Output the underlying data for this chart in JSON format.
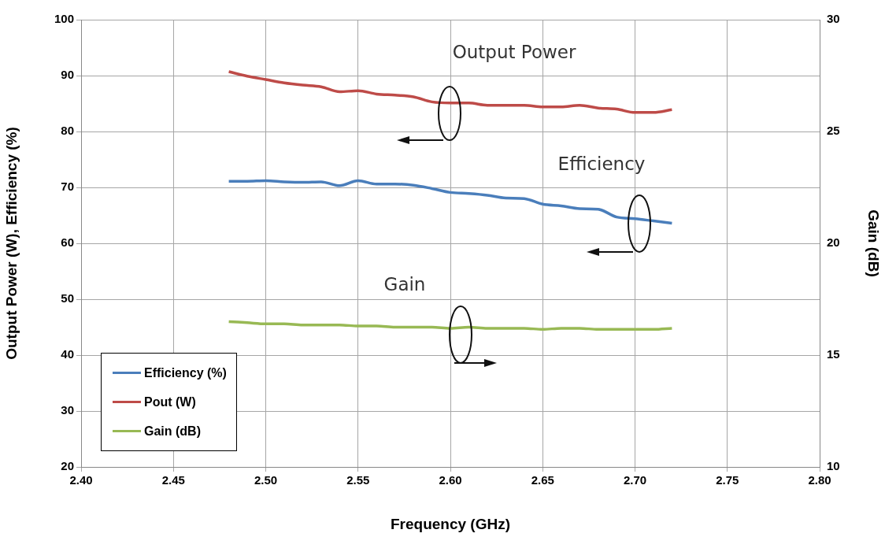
{
  "chart_data": {
    "type": "line",
    "xlabel": "Frequency (GHz)",
    "ylabel": "Output Power (W), Efficiency (%)",
    "y2label": "Gain (dB)",
    "x": [
      2.48,
      2.49,
      2.5,
      2.51,
      2.52,
      2.53,
      2.54,
      2.55,
      2.56,
      2.57,
      2.58,
      2.59,
      2.6,
      2.61,
      2.62,
      2.63,
      2.64,
      2.65,
      2.66,
      2.67,
      2.68,
      2.69,
      2.7,
      2.71,
      2.72
    ],
    "series": [
      {
        "name": "Efficiency (%)",
        "color": "#4a7ebb",
        "values": [
          71.1,
          71.1,
          71.2,
          71.0,
          70.9,
          71.0,
          70.3,
          71.2,
          70.6,
          70.6,
          70.4,
          69.8,
          69.1,
          68.9,
          68.6,
          68.1,
          68.0,
          67.0,
          66.7,
          66.2,
          66.1,
          64.7,
          64.4,
          64.0,
          63.6
        ]
      },
      {
        "name": "Pout (W)",
        "color": "#be4b48",
        "values": [
          90.7,
          89.9,
          89.3,
          88.7,
          88.3,
          88.0,
          87.1,
          87.3,
          86.7,
          86.5,
          86.2,
          85.3,
          85.1,
          85.1,
          84.7,
          84.7,
          84.7,
          84.4,
          84.4,
          84.7,
          84.2,
          84.0,
          83.4,
          83.4,
          83.9
        ]
      },
      {
        "name": "Gain (dB)",
        "color": "#98b954",
        "axis": "y2",
        "values": [
          16.5,
          16.45,
          16.4,
          16.4,
          16.35,
          16.35,
          16.35,
          16.3,
          16.3,
          16.25,
          16.25,
          16.25,
          16.2,
          16.25,
          16.2,
          16.2,
          16.2,
          16.15,
          16.2,
          16.2,
          16.15,
          16.15,
          16.15,
          16.15,
          16.2
        ]
      }
    ],
    "xlim": [
      2.4,
      2.8
    ],
    "xticks": [
      {
        "value": 2.4,
        "label": "2.40"
      },
      {
        "value": 2.45,
        "label": "2.45"
      },
      {
        "value": 2.5,
        "label": "2.50"
      },
      {
        "value": 2.55,
        "label": "2.55"
      },
      {
        "value": 2.6,
        "label": "2.60"
      },
      {
        "value": 2.65,
        "label": "2.65"
      },
      {
        "value": 2.7,
        "label": "2.70"
      },
      {
        "value": 2.75,
        "label": "2.75"
      },
      {
        "value": 2.8,
        "label": "2.80"
      }
    ],
    "ylim": [
      20,
      100
    ],
    "yticks": [
      20,
      30,
      40,
      50,
      60,
      70,
      80,
      90,
      100
    ],
    "y2lim": [
      10,
      30
    ],
    "y2ticks": [
      10,
      15,
      20,
      25,
      30
    ],
    "annotations": [
      "Output Power",
      "Efficiency",
      "Gain"
    ],
    "grid": true,
    "legend": "bottom left",
    "marker": "none",
    "line_style": "solid"
  }
}
